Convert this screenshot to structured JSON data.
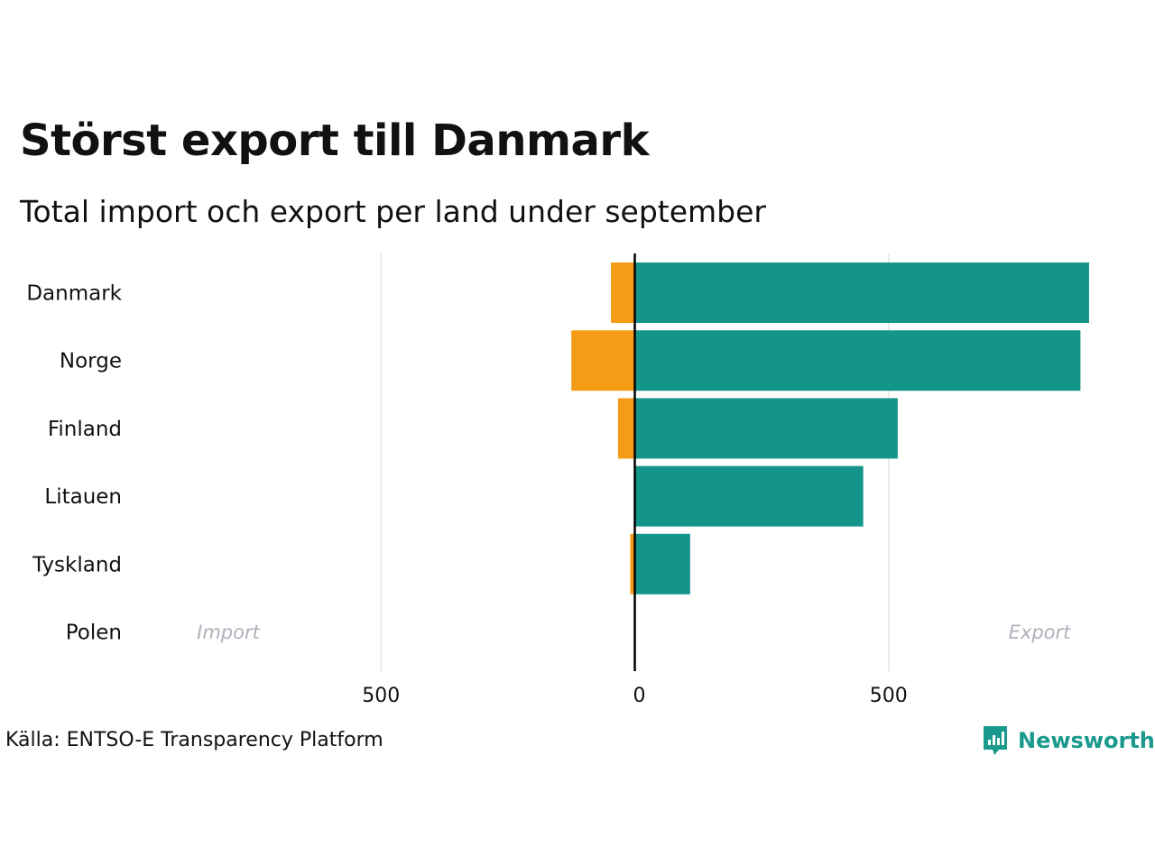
{
  "title": "Störst export till Danmark",
  "subtitle": "Total import och export per land under september",
  "source": "Källa: ENTSO-E Transparency Platform",
  "brand": {
    "name": "Newsworthy",
    "color": "#1a9a8c",
    "icon": "newsworthy-logo-icon"
  },
  "colors": {
    "import": "#f59c17",
    "export": "#13958a",
    "annotation": "#b0b0bc",
    "grid": "#e6e6e6",
    "zero_line": "#000000"
  },
  "chart_data": {
    "type": "bar",
    "orientation": "horizontal",
    "diverging": true,
    "categories": [
      "Danmark",
      "Norge",
      "Finland",
      "Litauen",
      "Tyskland",
      "Polen"
    ],
    "series": [
      {
        "key": "import",
        "values": [
          -47,
          -125,
          -33,
          0,
          -9,
          0
        ]
      },
      {
        "key": "export",
        "values": [
          895,
          878,
          518,
          450,
          109,
          0
        ]
      }
    ],
    "x_ticks": [
      {
        "value": -500,
        "label": "500"
      },
      {
        "value": 0,
        "label": "0"
      },
      {
        "value": 500,
        "label": "500"
      }
    ],
    "xlim": [
      -1000,
      1000
    ],
    "grid": "vertical",
    "annotations": {
      "import": "Import",
      "export": "Export"
    }
  }
}
